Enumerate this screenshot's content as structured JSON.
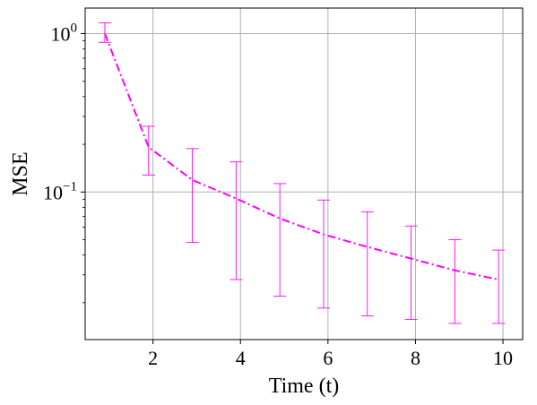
{
  "chart_data": {
    "type": "line",
    "title": "",
    "xlabel": "Time (t)",
    "ylabel": "MSE",
    "yscale": "log",
    "xlim": [
      0.45,
      10.45
    ],
    "ylim": [
      0.0117,
      1.45
    ],
    "grid": true,
    "x_ticks": [
      {
        "value": 2,
        "label": "2"
      },
      {
        "value": 4,
        "label": "4"
      },
      {
        "value": 6,
        "label": "6"
      },
      {
        "value": 8,
        "label": "8"
      },
      {
        "value": 10,
        "label": "10"
      }
    ],
    "y_ticks": [
      {
        "value": 1,
        "base": "10",
        "exp": "0"
      },
      {
        "value": 0.1,
        "base": "10",
        "exp": "−1"
      }
    ],
    "series": [
      {
        "color": "#ff00ff",
        "line_style": "dash-dot",
        "x": [
          0.9,
          1.9,
          2.9,
          3.9,
          4.9,
          5.9,
          6.9,
          7.9,
          8.9,
          9.9
        ],
        "y": [
          1.0,
          0.192,
          0.119,
          0.091,
          0.068,
          0.054,
          0.045,
          0.038,
          0.032,
          0.028
        ],
        "err_low": [
          0.88,
          0.128,
          0.048,
          0.028,
          0.022,
          0.0185,
          0.0165,
          0.0157,
          0.0148,
          0.0148
        ],
        "err_high": [
          1.17,
          0.26,
          0.188,
          0.155,
          0.113,
          0.089,
          0.075,
          0.061,
          0.05,
          0.043
        ]
      }
    ]
  }
}
